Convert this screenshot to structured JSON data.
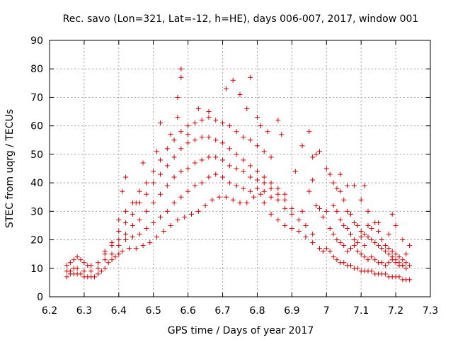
{
  "chart_data": {
    "type": "scatter",
    "title": "Rec. savo (Lon=321, Lat=-12, h=HE), days 006-007, 2017, window 001",
    "xlabel": "GPS time / Days of year 2017",
    "ylabel": "STEC from uqrg / TECUs",
    "xlim": [
      6.2,
      7.3
    ],
    "ylim": [
      0,
      90
    ],
    "xticks": [
      "6.2",
      "6.3",
      "6.4",
      "6.5",
      "6.6",
      "6.7",
      "6.8",
      "6.9",
      "7",
      "7.1",
      "7.2",
      "7.3"
    ],
    "yticks": [
      "0",
      "10",
      "20",
      "30",
      "40",
      "50",
      "60",
      "70",
      "80",
      "90"
    ],
    "grid": true,
    "marker": "+",
    "color": "#cc0000",
    "series": [
      {
        "name": "STEC",
        "points": [
          [
            6.25,
            7
          ],
          [
            6.26,
            8
          ],
          [
            6.27,
            8
          ],
          [
            6.28,
            8
          ],
          [
            6.29,
            8
          ],
          [
            6.3,
            7
          ],
          [
            6.31,
            7
          ],
          [
            6.32,
            7
          ],
          [
            6.33,
            7
          ],
          [
            6.34,
            8
          ],
          [
            6.35,
            9
          ],
          [
            6.36,
            10
          ],
          [
            6.37,
            12
          ],
          [
            6.38,
            13
          ],
          [
            6.39,
            14
          ],
          [
            6.4,
            15
          ],
          [
            6.41,
            16
          ],
          [
            6.43,
            17
          ],
          [
            6.45,
            17
          ],
          [
            6.47,
            18
          ],
          [
            6.49,
            19
          ],
          [
            6.51,
            21
          ],
          [
            6.53,
            23
          ],
          [
            6.55,
            25
          ],
          [
            6.57,
            27
          ],
          [
            6.59,
            28
          ],
          [
            6.61,
            29
          ],
          [
            6.63,
            30
          ],
          [
            6.65,
            32
          ],
          [
            6.67,
            34
          ],
          [
            6.69,
            35
          ],
          [
            6.71,
            35
          ],
          [
            6.73,
            34
          ],
          [
            6.75,
            33
          ],
          [
            6.77,
            33
          ],
          [
            6.79,
            35
          ],
          [
            6.81,
            36
          ],
          [
            6.82,
            33
          ],
          [
            6.84,
            29
          ],
          [
            6.86,
            27
          ],
          [
            6.88,
            25
          ],
          [
            6.9,
            24
          ],
          [
            6.92,
            23
          ],
          [
            6.94,
            21
          ],
          [
            6.96,
            19
          ],
          [
            6.98,
            17
          ],
          [
            6.25,
            9
          ],
          [
            6.26,
            9
          ],
          [
            6.27,
            10
          ],
          [
            6.28,
            10
          ],
          [
            6.3,
            9
          ],
          [
            6.32,
            9
          ],
          [
            6.34,
            10
          ],
          [
            6.36,
            13
          ],
          [
            6.38,
            15
          ],
          [
            6.4,
            18
          ],
          [
            6.42,
            20
          ],
          [
            6.44,
            21
          ],
          [
            6.46,
            22
          ],
          [
            6.48,
            24
          ],
          [
            6.5,
            26
          ],
          [
            6.52,
            28
          ],
          [
            6.54,
            30
          ],
          [
            6.56,
            33
          ],
          [
            6.58,
            35
          ],
          [
            6.6,
            37
          ],
          [
            6.62,
            39
          ],
          [
            6.64,
            40
          ],
          [
            6.66,
            42
          ],
          [
            6.68,
            43
          ],
          [
            6.7,
            42
          ],
          [
            6.72,
            40
          ],
          [
            6.74,
            39
          ],
          [
            6.76,
            38
          ],
          [
            6.78,
            37
          ],
          [
            6.8,
            38
          ],
          [
            6.82,
            37
          ],
          [
            6.84,
            35
          ],
          [
            6.86,
            34
          ],
          [
            6.88,
            31
          ],
          [
            6.9,
            29
          ],
          [
            6.92,
            27
          ],
          [
            6.94,
            25
          ],
          [
            6.96,
            22
          ],
          [
            6.25,
            11
          ],
          [
            6.26,
            12
          ],
          [
            6.27,
            13
          ],
          [
            6.28,
            14
          ],
          [
            6.29,
            13
          ],
          [
            6.3,
            12
          ],
          [
            6.31,
            11
          ],
          [
            6.32,
            11
          ],
          [
            6.34,
            12
          ],
          [
            6.36,
            15
          ],
          [
            6.38,
            18
          ],
          [
            6.4,
            20
          ],
          [
            6.42,
            22
          ],
          [
            6.44,
            25
          ],
          [
            6.46,
            27
          ],
          [
            6.48,
            30
          ],
          [
            6.5,
            33
          ],
          [
            6.52,
            36
          ],
          [
            6.54,
            39
          ],
          [
            6.56,
            42
          ],
          [
            6.58,
            44
          ],
          [
            6.6,
            45
          ],
          [
            6.62,
            47
          ],
          [
            6.64,
            48
          ],
          [
            6.66,
            49
          ],
          [
            6.68,
            49
          ],
          [
            6.7,
            48
          ],
          [
            6.72,
            46
          ],
          [
            6.74,
            45
          ],
          [
            6.76,
            44
          ],
          [
            6.78,
            42
          ],
          [
            6.8,
            41
          ],
          [
            6.82,
            40
          ],
          [
            6.84,
            38
          ],
          [
            6.86,
            36
          ],
          [
            6.88,
            34
          ],
          [
            6.9,
            31
          ],
          [
            6.36,
            16
          ],
          [
            6.38,
            19
          ],
          [
            6.4,
            23
          ],
          [
            6.42,
            26
          ],
          [
            6.44,
            29
          ],
          [
            6.46,
            33
          ],
          [
            6.48,
            36
          ],
          [
            6.5,
            40
          ],
          [
            6.52,
            43
          ],
          [
            6.54,
            46
          ],
          [
            6.56,
            49
          ],
          [
            6.58,
            52
          ],
          [
            6.6,
            54
          ],
          [
            6.62,
            55
          ],
          [
            6.64,
            56
          ],
          [
            6.66,
            56
          ],
          [
            6.68,
            55
          ],
          [
            6.7,
            54
          ],
          [
            6.72,
            52
          ],
          [
            6.74,
            50
          ],
          [
            6.76,
            48
          ],
          [
            6.78,
            46
          ],
          [
            6.8,
            44
          ],
          [
            6.82,
            42
          ],
          [
            6.84,
            40
          ],
          [
            6.86,
            38
          ],
          [
            6.88,
            36
          ],
          [
            6.4,
            27
          ],
          [
            6.42,
            30
          ],
          [
            6.44,
            33
          ],
          [
            6.46,
            37
          ],
          [
            6.48,
            40
          ],
          [
            6.5,
            44
          ],
          [
            6.52,
            48
          ],
          [
            6.54,
            52
          ],
          [
            6.56,
            55
          ],
          [
            6.58,
            58
          ],
          [
            6.6,
            60
          ],
          [
            6.62,
            61
          ],
          [
            6.64,
            62
          ],
          [
            6.66,
            63
          ],
          [
            6.68,
            62
          ],
          [
            6.7,
            61
          ],
          [
            6.72,
            60
          ],
          [
            6.74,
            58
          ],
          [
            6.76,
            56
          ],
          [
            6.78,
            55
          ],
          [
            6.8,
            53
          ],
          [
            6.82,
            51
          ],
          [
            6.84,
            49
          ],
          [
            6.41,
            37
          ],
          [
            6.42,
            42
          ],
          [
            6.45,
            33
          ],
          [
            6.47,
            47
          ],
          [
            6.51,
            51
          ],
          [
            6.52,
            61
          ],
          [
            6.55,
            57
          ],
          [
            6.57,
            63
          ],
          [
            6.57,
            70
          ],
          [
            6.58,
            77
          ],
          [
            6.58,
            80
          ],
          [
            6.6,
            57
          ],
          [
            6.63,
            66
          ],
          [
            6.66,
            65
          ],
          [
            6.71,
            73
          ],
          [
            6.73,
            76
          ],
          [
            6.75,
            71
          ],
          [
            6.77,
            66
          ],
          [
            6.78,
            77
          ],
          [
            6.8,
            63
          ],
          [
            6.81,
            60
          ],
          [
            6.83,
            58
          ],
          [
            6.86,
            62
          ],
          [
            6.87,
            57
          ],
          [
            6.91,
            44
          ],
          [
            6.93,
            53
          ],
          [
            6.95,
            58
          ],
          [
            6.96,
            49
          ],
          [
            6.97,
            50
          ],
          [
            6.98,
            51
          ],
          [
            6.93,
            30
          ],
          [
            6.95,
            37
          ],
          [
            6.96,
            41
          ],
          [
            6.97,
            32
          ],
          [
            6.98,
            31
          ],
          [
            6.99,
            28
          ],
          [
            7.0,
            30
          ],
          [
            7.01,
            24
          ],
          [
            7.02,
            22
          ],
          [
            7.03,
            20
          ],
          [
            7.04,
            19
          ],
          [
            7.05,
            18
          ],
          [
            7.06,
            16
          ],
          [
            7.07,
            17
          ],
          [
            7.08,
            18
          ],
          [
            7.09,
            16
          ],
          [
            7.1,
            15
          ],
          [
            7.11,
            14
          ],
          [
            7.12,
            13
          ],
          [
            7.13,
            14
          ],
          [
            7.14,
            13
          ],
          [
            7.15,
            12
          ],
          [
            7.16,
            12
          ],
          [
            7.17,
            11
          ],
          [
            7.18,
            12
          ],
          [
            7.19,
            13
          ],
          [
            7.2,
            12
          ],
          [
            7.21,
            11
          ],
          [
            7.22,
            11
          ],
          [
            7.23,
            10
          ],
          [
            6.99,
            16
          ],
          [
            7.0,
            17
          ],
          [
            7.01,
            16
          ],
          [
            7.02,
            14
          ],
          [
            7.03,
            13
          ],
          [
            7.04,
            12
          ],
          [
            7.05,
            12
          ],
          [
            7.06,
            11
          ],
          [
            7.07,
            11
          ],
          [
            7.08,
            10
          ],
          [
            7.09,
            10
          ],
          [
            7.1,
            9
          ],
          [
            7.11,
            9
          ],
          [
            7.12,
            9
          ],
          [
            7.13,
            9
          ],
          [
            7.14,
            8
          ],
          [
            7.15,
            8
          ],
          [
            7.16,
            8
          ],
          [
            7.17,
            8
          ],
          [
            7.18,
            7
          ],
          [
            7.19,
            7
          ],
          [
            7.2,
            7
          ],
          [
            7.21,
            7
          ],
          [
            7.22,
            6
          ],
          [
            7.23,
            6
          ],
          [
            7.24,
            6
          ],
          [
            7.0,
            45
          ],
          [
            7.01,
            43
          ],
          [
            7.02,
            40
          ],
          [
            7.03,
            38
          ],
          [
            7.04,
            37
          ],
          [
            7.05,
            34
          ],
          [
            7.06,
            30
          ],
          [
            7.07,
            29
          ],
          [
            7.08,
            26
          ],
          [
            7.09,
            25
          ],
          [
            7.1,
            23
          ],
          [
            7.11,
            22
          ],
          [
            7.12,
            21
          ],
          [
            7.13,
            20
          ],
          [
            7.14,
            19
          ],
          [
            7.15,
            18
          ],
          [
            7.16,
            17
          ],
          [
            7.17,
            16
          ],
          [
            7.18,
            15
          ],
          [
            7.19,
            14
          ],
          [
            7.2,
            13
          ],
          [
            7.21,
            12
          ],
          [
            7.22,
            11
          ],
          [
            7.02,
            32
          ],
          [
            7.03,
            30
          ],
          [
            7.04,
            27
          ],
          [
            7.05,
            25
          ],
          [
            7.06,
            24
          ],
          [
            7.07,
            22
          ],
          [
            7.08,
            20
          ],
          [
            7.09,
            19
          ],
          [
            7.1,
            21
          ],
          [
            7.11,
            18
          ],
          [
            7.12,
            25
          ],
          [
            7.13,
            24
          ],
          [
            7.14,
            26
          ],
          [
            7.15,
            23
          ],
          [
            7.16,
            20
          ],
          [
            7.17,
            18
          ],
          [
            7.18,
            17
          ],
          [
            7.19,
            16
          ],
          [
            7.2,
            15
          ],
          [
            7.21,
            14
          ],
          [
            7.22,
            13
          ],
          [
            7.23,
            12
          ],
          [
            7.24,
            11
          ],
          [
            7.04,
            43
          ],
          [
            7.06,
            39
          ],
          [
            7.08,
            39
          ],
          [
            7.1,
            34
          ],
          [
            7.11,
            39
          ],
          [
            7.12,
            30
          ],
          [
            7.15,
            26
          ],
          [
            7.18,
            22
          ],
          [
            7.19,
            29
          ],
          [
            7.2,
            25
          ],
          [
            7.22,
            20
          ],
          [
            7.23,
            15
          ],
          [
            7.24,
            18
          ]
        ]
      }
    ]
  }
}
